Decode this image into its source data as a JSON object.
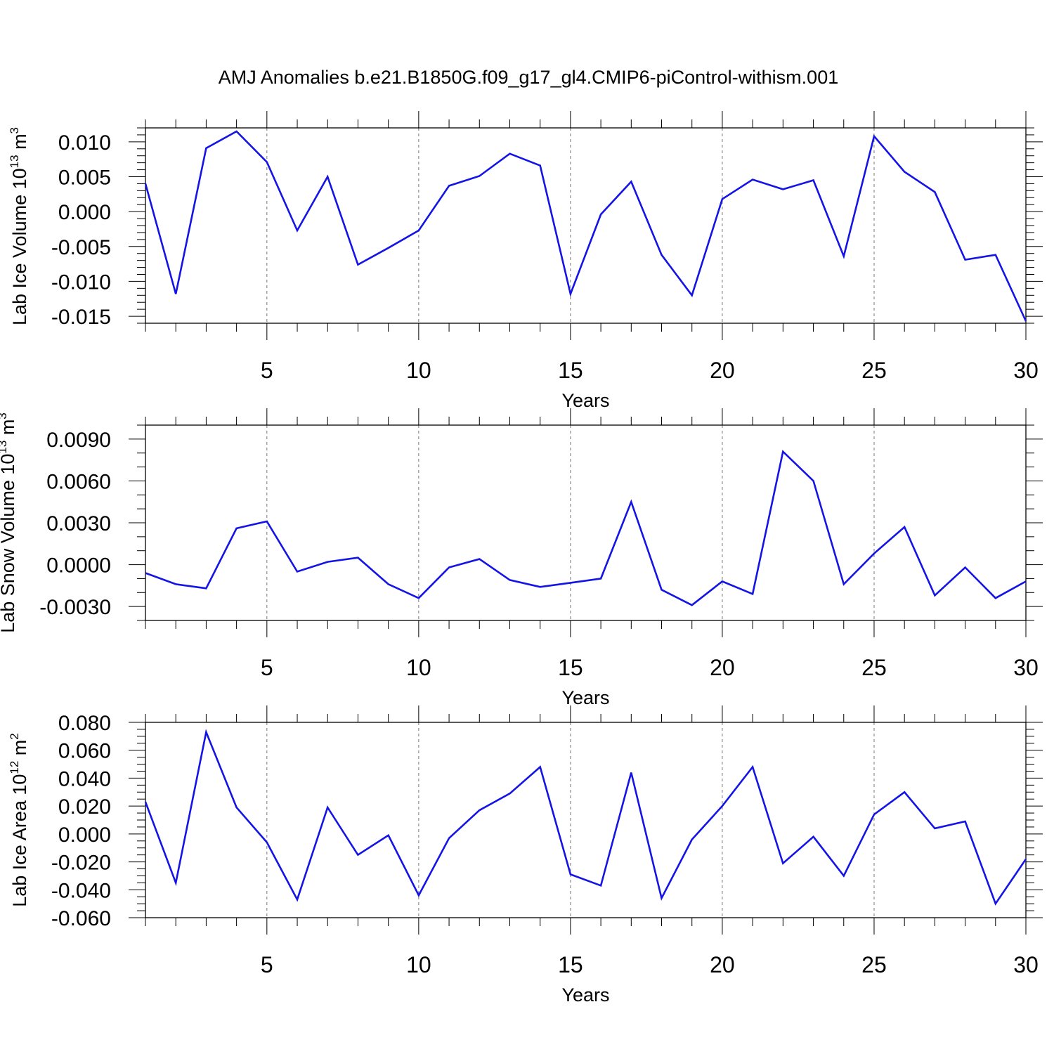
{
  "figure": {
    "title": "AMJ Anomalies b.e21.B1850G.f09_g17_gl4.CMIP6-piControl-withism.001",
    "line_color": "#1414e6",
    "grid_color": "#777777"
  },
  "chart_data": [
    {
      "type": "line",
      "title": "AMJ Anomalies b.e21.B1850G.f09_g17_gl4.CMIP6-piControl-withism.001",
      "xlabel": "Years",
      "ylabel": {
        "text": "Lab Ice Volume 10",
        "exp": "13",
        "unit": " m",
        "unit_exp": "3"
      },
      "xlim": [
        1,
        30
      ],
      "ylim": [
        -0.016,
        0.012
      ],
      "xticks": [
        5,
        10,
        15,
        20,
        25,
        30
      ],
      "xtick_labels": [
        "5",
        "10",
        "15",
        "20",
        "25",
        "30"
      ],
      "yticks": [
        0.01,
        0.005,
        0.0,
        -0.005,
        -0.01,
        -0.015
      ],
      "ytick_labels": [
        "0.010",
        "0.005",
        "0.000",
        "-0.005",
        "-0.010",
        "-0.015"
      ],
      "ystep_minor": 0.001,
      "grid": "x-dashed",
      "x": [
        1,
        2,
        3,
        4,
        5,
        6,
        7,
        8,
        9,
        10,
        11,
        12,
        13,
        14,
        15,
        16,
        17,
        18,
        19,
        20,
        21,
        22,
        23,
        24,
        25,
        26,
        27,
        28,
        29,
        30
      ],
      "series": [
        {
          "name": "Lab Ice Volume",
          "values": [
            0.004,
            -0.0118,
            0.0091,
            0.0115,
            0.0071,
            -0.0027,
            0.005,
            -0.0076,
            -0.0052,
            -0.0027,
            0.0037,
            0.0051,
            0.0083,
            0.0066,
            -0.0118,
            -0.0004,
            0.0043,
            -0.0062,
            -0.012,
            0.0018,
            0.0046,
            0.0032,
            0.0045,
            -0.0064,
            0.0108,
            0.0057,
            0.0028,
            -0.0069,
            -0.0062,
            -0.0157
          ]
        }
      ]
    },
    {
      "type": "line",
      "xlabel": "Years",
      "ylabel": {
        "text": "Lab Snow Volume 10",
        "exp": "13",
        "unit": " m",
        "unit_exp": "3"
      },
      "xlim": [
        1,
        30
      ],
      "ylim": [
        -0.004,
        0.01
      ],
      "xticks": [
        5,
        10,
        15,
        20,
        25,
        30
      ],
      "xtick_labels": [
        "5",
        "10",
        "15",
        "20",
        "25",
        "30"
      ],
      "yticks": [
        0.009,
        0.006,
        0.003,
        0.0,
        -0.003
      ],
      "ytick_labels": [
        "0.0090",
        "0.0060",
        "0.0030",
        "0.0000",
        "-0.0030"
      ],
      "ystep_minor": 0.001,
      "grid": "x-dashed",
      "x": [
        1,
        2,
        3,
        4,
        5,
        6,
        7,
        8,
        9,
        10,
        11,
        12,
        13,
        14,
        15,
        16,
        17,
        18,
        19,
        20,
        21,
        22,
        23,
        24,
        25,
        26,
        27,
        28,
        29,
        30
      ],
      "series": [
        {
          "name": "Lab Snow Volume",
          "values": [
            -0.0006,
            -0.0014,
            -0.0017,
            0.0026,
            0.0031,
            -0.0005,
            0.0002,
            0.0005,
            -0.0014,
            -0.0024,
            -0.0002,
            0.0004,
            -0.0011,
            -0.0016,
            -0.0013,
            -0.001,
            0.0045,
            -0.0018,
            -0.0029,
            -0.0012,
            -0.0021,
            0.0081,
            0.006,
            -0.0014,
            0.0008,
            0.0027,
            -0.0022,
            -0.0002,
            -0.0024,
            -0.0012
          ]
        }
      ]
    },
    {
      "type": "line",
      "xlabel": "Years",
      "ylabel": {
        "text": "Lab Ice Area 10",
        "exp": "12",
        "unit": " m",
        "unit_exp": "2"
      },
      "xlim": [
        1,
        30
      ],
      "ylim": [
        -0.06,
        0.08
      ],
      "xticks": [
        5,
        10,
        15,
        20,
        25,
        30
      ],
      "xtick_labels": [
        "5",
        "10",
        "15",
        "20",
        "25",
        "30"
      ],
      "yticks": [
        0.08,
        0.06,
        0.04,
        0.02,
        0.0,
        -0.02,
        -0.04,
        -0.06
      ],
      "ytick_labels": [
        "0.080",
        "0.060",
        "0.040",
        "0.020",
        "0.000",
        "-0.020",
        "-0.040",
        "-0.060"
      ],
      "ystep_minor": 0.005,
      "grid": "x-dashed",
      "x": [
        1,
        2,
        3,
        4,
        5,
        6,
        7,
        8,
        9,
        10,
        11,
        12,
        13,
        14,
        15,
        16,
        17,
        18,
        19,
        20,
        21,
        22,
        23,
        24,
        25,
        26,
        27,
        28,
        29,
        30
      ],
      "series": [
        {
          "name": "Lab Ice Area",
          "values": [
            0.023,
            -0.035,
            0.073,
            0.019,
            -0.006,
            -0.047,
            0.019,
            -0.015,
            -0.001,
            -0.044,
            -0.003,
            0.017,
            0.029,
            0.048,
            -0.029,
            -0.037,
            0.044,
            -0.046,
            -0.004,
            0.02,
            0.048,
            -0.021,
            -0.002,
            -0.03,
            0.014,
            0.03,
            0.004,
            0.009,
            -0.05,
            -0.018
          ]
        }
      ]
    }
  ]
}
